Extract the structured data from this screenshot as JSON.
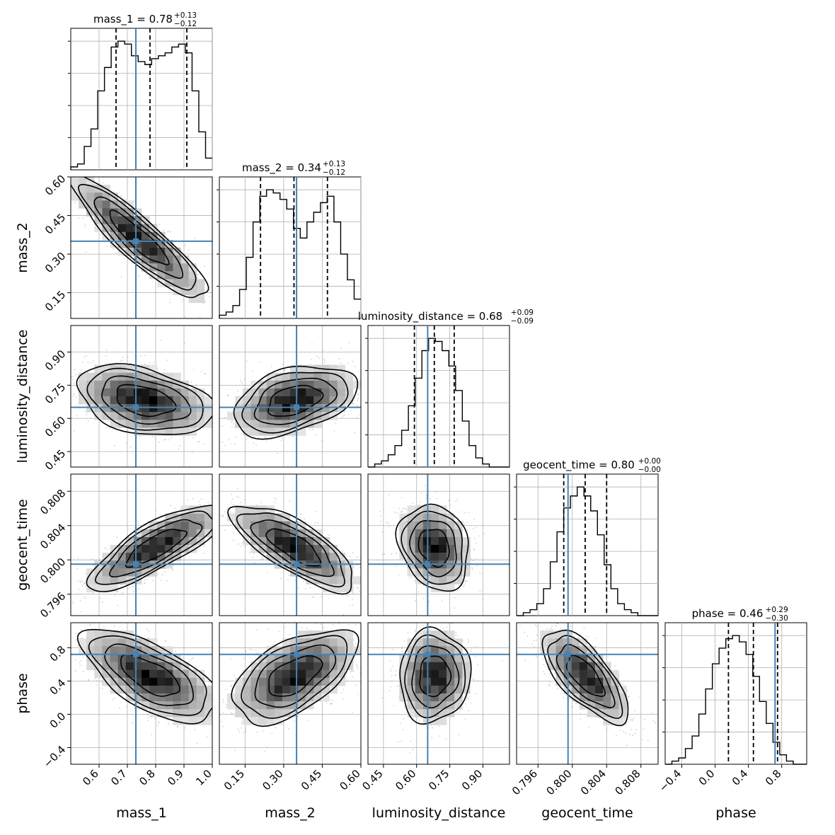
{
  "chart_data": {
    "type": "corner",
    "params": [
      {
        "name": "mass_1",
        "label": "mass_1",
        "range": [
          0.5,
          1.0
        ],
        "ticks": [
          0.6,
          0.7,
          0.8,
          0.9,
          1.0
        ],
        "tick_labels": [
          "0.6",
          "0.7",
          "0.8",
          "0.9",
          "1.0"
        ],
        "truth": 0.73,
        "quantiles": [
          0.66,
          0.78,
          0.91
        ],
        "title": {
          "main": "mass_1 = 0.78",
          "sup": "+0.13",
          "sub": "−0.12"
        },
        "hist": [
          1,
          2,
          8,
          14,
          27,
          35,
          42,
          44,
          43,
          39,
          37,
          36,
          38,
          39,
          40,
          42,
          43,
          40,
          27,
          13,
          4
        ]
      },
      {
        "name": "mass_2",
        "label": "mass_2",
        "range": [
          0.05,
          0.6
        ],
        "ticks": [
          0.15,
          0.3,
          0.45,
          0.6
        ],
        "tick_labels": [
          "0.15",
          "0.30",
          "0.45",
          "0.60"
        ],
        "truth": 0.35,
        "quantiles": [
          0.21,
          0.34,
          0.47
        ],
        "title": {
          "main": "mass_2 = 0.34",
          "sup": "+0.13",
          "sub": "−0.12"
        },
        "hist": [
          1,
          2,
          4,
          9,
          19,
          30,
          38,
          40,
          39,
          37,
          34,
          28,
          25,
          30,
          33,
          36,
          38,
          30,
          20,
          12,
          6
        ]
      },
      {
        "name": "luminosity_distance",
        "label": "luminosity_distance",
        "range": [
          0.38,
          1.02
        ],
        "ticks": [
          0.45,
          0.6,
          0.75,
          0.9
        ],
        "tick_labels": [
          "0.45",
          "0.60",
          "0.75",
          "0.90"
        ],
        "truth": 0.65,
        "quantiles": [
          0.59,
          0.68,
          0.77
        ],
        "title": {
          "main": "luminosity_distance = 0.68",
          "sup": "+0.09",
          "sub": "−0.09"
        },
        "hist": [
          0,
          1,
          2,
          4,
          7,
          12,
          20,
          29,
          38,
          42,
          41,
          38,
          33,
          25,
          15,
          7,
          3,
          1,
          0,
          0,
          0
        ]
      },
      {
        "name": "geocent_time",
        "label": "geocent_time",
        "range": [
          0.7935,
          0.81
        ],
        "ticks": [
          0.796,
          0.8,
          0.804,
          0.808
        ],
        "tick_labels": [
          "0.796",
          "0.800",
          "0.804",
          "0.808"
        ],
        "truth": 0.7995,
        "quantiles": [
          0.799,
          0.8015,
          0.804
        ],
        "title": {
          "main": "geocent_time = 0.80",
          "sup": "+0.00",
          "sub": "−0.00"
        },
        "hist": [
          0,
          1,
          2,
          4,
          9,
          18,
          28,
          36,
          40,
          43,
          40,
          35,
          27,
          17,
          9,
          4,
          2,
          1,
          0,
          0,
          0
        ]
      },
      {
        "name": "phase",
        "label": "phase",
        "range": [
          -0.6,
          1.1
        ],
        "ticks": [
          -0.4,
          0.0,
          0.4,
          0.8
        ],
        "tick_labels": [
          "−0.4",
          "0.0",
          "0.4",
          "0.8"
        ],
        "truth": 0.72,
        "quantiles": [
          0.16,
          0.46,
          0.75
        ],
        "title": {
          "main": "phase = 0.46",
          "sup": "+0.29",
          "sub": "−0.30"
        },
        "hist": [
          0,
          1,
          2,
          5,
          9,
          16,
          24,
          32,
          37,
          40,
          41,
          39,
          35,
          28,
          20,
          13,
          7,
          3,
          1,
          0,
          0
        ]
      }
    ],
    "pairs": [
      {
        "row": 1,
        "col": 0,
        "mean": [
          0.74,
          0.36
        ],
        "sd": [
          0.12,
          0.12
        ],
        "rho": -0.9
      },
      {
        "row": 2,
        "col": 0,
        "mean": [
          0.76,
          0.68
        ],
        "sd": [
          0.12,
          0.08
        ],
        "rho": -0.35
      },
      {
        "row": 2,
        "col": 1,
        "mean": [
          0.34,
          0.68
        ],
        "sd": [
          0.12,
          0.08
        ],
        "rho": 0.4
      },
      {
        "row": 3,
        "col": 0,
        "mean": [
          0.8,
          0.8015
        ],
        "sd": [
          0.12,
          0.0025
        ],
        "rho": 0.8
      },
      {
        "row": 3,
        "col": 1,
        "mean": [
          0.34,
          0.8015
        ],
        "sd": [
          0.12,
          0.0025
        ],
        "rho": -0.75
      },
      {
        "row": 3,
        "col": 2,
        "mean": [
          0.68,
          0.8015
        ],
        "sd": [
          0.08,
          0.0025
        ],
        "rho": -0.2
      },
      {
        "row": 4,
        "col": 0,
        "mean": [
          0.78,
          0.46
        ],
        "sd": [
          0.12,
          0.28
        ],
        "rho": -0.65
      },
      {
        "row": 4,
        "col": 1,
        "mean": [
          0.34,
          0.46
        ],
        "sd": [
          0.12,
          0.28
        ],
        "rho": 0.55
      },
      {
        "row": 4,
        "col": 2,
        "mean": [
          0.68,
          0.46
        ],
        "sd": [
          0.08,
          0.28
        ],
        "rho": 0.05
      },
      {
        "row": 4,
        "col": 3,
        "mean": [
          0.8015,
          0.46
        ],
        "sd": [
          0.0025,
          0.28
        ],
        "rho": -0.7
      }
    ],
    "grid": true,
    "colors": {
      "truth": "#4682b4",
      "hist": "#000000",
      "quantile": "#000000",
      "density": "#000000",
      "points": "#9a9a9a",
      "grid": "#b0b0b0"
    }
  }
}
